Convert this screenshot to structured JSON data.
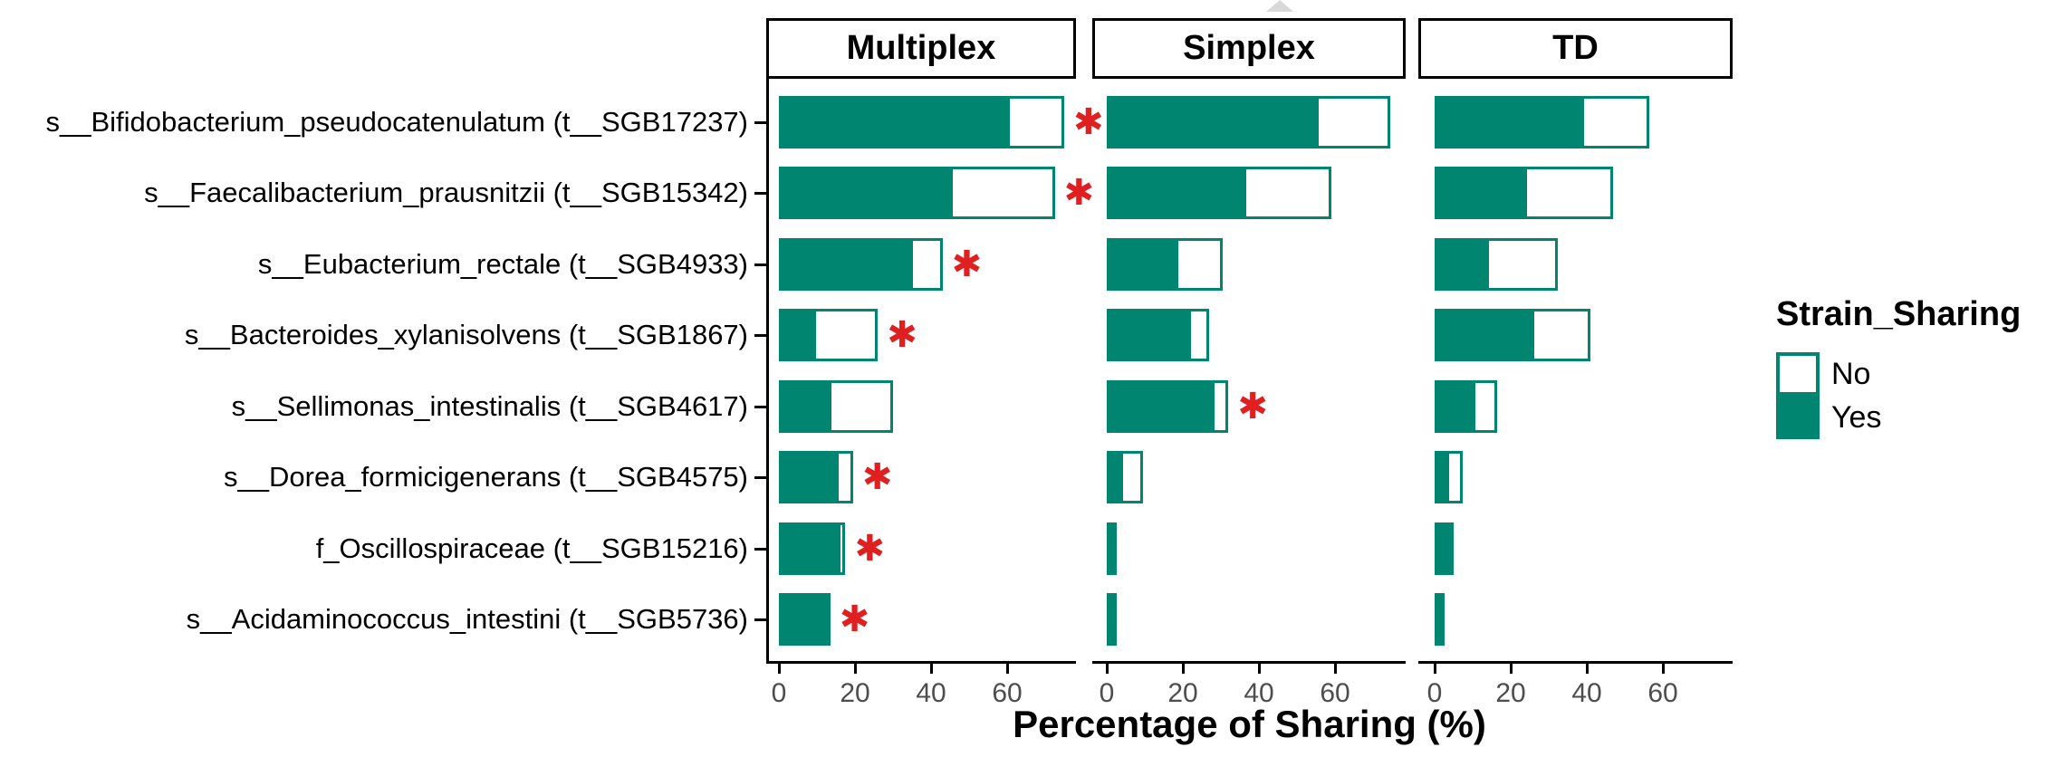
{
  "colors": {
    "yes_fill": "#008571",
    "no_fill": "#ffffff",
    "bar_border": "#008571",
    "star_red": "#e02020",
    "axis_black": "#000000",
    "tick_label_gray": "#4d4d4d",
    "triangle_gray": "#d9d9d9"
  },
  "symbols": {
    "star": "✱"
  },
  "legend": {
    "title": "Strain_Sharing",
    "entries": [
      {
        "label": "No",
        "fill": "#ffffff"
      },
      {
        "label": "Yes",
        "fill": "#008571"
      }
    ]
  },
  "chart_data": {
    "type": "bar",
    "orientation": "horizontal",
    "stacked": true,
    "xlabel": "Percentage of Sharing (%)",
    "x_ticks": [
      0,
      20,
      40,
      60
    ],
    "xlim": [
      0,
      78
    ],
    "grid": false,
    "legend_position": "right",
    "categories": [
      "s__Bifidobacterium_pseudocatenulatum (t__SGB17237)",
      "s__Faecalibacterium_prausnitzii (t__SGB15342)",
      "s__Eubacterium_rectale (t__SGB4933)",
      "s__Bacteroides_xylanisolvens (t__SGB1867)",
      "s__Sellimonas_intestinalis (t__SGB4617)",
      "s__Dorea_formicigenerans (t__SGB4575)",
      "f_Oscillospiraceae (t__SGB15216)",
      "s__Acidaminococcus_intestini (t__SGB5736)"
    ],
    "facets": [
      {
        "name": "Multiplex",
        "rows": [
          {
            "yes": 60,
            "no": 15,
            "star": true
          },
          {
            "yes": 45,
            "no": 27.5,
            "star": true
          },
          {
            "yes": 34.5,
            "no": 8.5,
            "star": true
          },
          {
            "yes": 9,
            "no": 17,
            "star": true
          },
          {
            "yes": 13,
            "no": 17,
            "star": false
          },
          {
            "yes": 15,
            "no": 4.5,
            "star": true
          },
          {
            "yes": 15.5,
            "no": 2,
            "star": true
          },
          {
            "yes": 13.5,
            "no": 0,
            "star": true
          }
        ]
      },
      {
        "name": "Simplex",
        "rows": [
          {
            "yes": 55,
            "no": 19.5,
            "star": false
          },
          {
            "yes": 36,
            "no": 23,
            "star": false
          },
          {
            "yes": 18,
            "no": 12.5,
            "star": false
          },
          {
            "yes": 21.5,
            "no": 5.5,
            "star": false
          },
          {
            "yes": 27.5,
            "no": 4.5,
            "star": true
          },
          {
            "yes": 3.5,
            "no": 6,
            "star": false
          },
          {
            "yes": 2.5,
            "no": 0,
            "star": false
          },
          {
            "yes": 2.5,
            "no": 0,
            "star": false
          }
        ]
      },
      {
        "name": "TD",
        "rows": [
          {
            "yes": 38.5,
            "no": 18,
            "star": false
          },
          {
            "yes": 23.5,
            "no": 23.5,
            "star": false
          },
          {
            "yes": 13.5,
            "no": 19,
            "star": false
          },
          {
            "yes": 25.5,
            "no": 15.5,
            "star": false
          },
          {
            "yes": 10,
            "no": 6.5,
            "star": false
          },
          {
            "yes": 3,
            "no": 4.5,
            "star": false
          },
          {
            "yes": 3.5,
            "no": 1.5,
            "star": false
          },
          {
            "yes": 2.5,
            "no": 0,
            "star": false
          }
        ]
      }
    ]
  }
}
